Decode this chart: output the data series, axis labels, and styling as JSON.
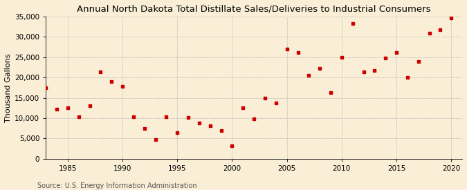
{
  "title": "Annual North Dakota Total Distillate Sales/Deliveries to Industrial Consumers",
  "ylabel": "Thousand Gallons",
  "source": "Source: U.S. Energy Information Administration",
  "background_color": "#faefd6",
  "marker_color": "#cc0000",
  "years": [
    1983,
    1984,
    1985,
    1986,
    1987,
    1988,
    1989,
    1990,
    1991,
    1992,
    1993,
    1994,
    1995,
    1996,
    1997,
    1998,
    1999,
    2000,
    2001,
    2002,
    2003,
    2004,
    2005,
    2006,
    2007,
    2008,
    2009,
    2010,
    2011,
    2012,
    2013,
    2014,
    2015,
    2016,
    2017,
    2018,
    2019,
    2020
  ],
  "values": [
    17500,
    12200,
    12500,
    10400,
    13000,
    21300,
    19000,
    17800,
    10400,
    7500,
    4800,
    10300,
    6500,
    10100,
    8800,
    8200,
    7000,
    3200,
    12500,
    9900,
    15000,
    13700,
    27000,
    26200,
    20600,
    22300,
    16200,
    25000,
    33200,
    21400,
    21800,
    24800,
    26100,
    20000,
    23900,
    30900,
    31800,
    34700
  ],
  "ylim": [
    0,
    35000
  ],
  "yticks": [
    0,
    5000,
    10000,
    15000,
    20000,
    25000,
    30000,
    35000
  ],
  "xticks": [
    1985,
    1990,
    1995,
    2000,
    2005,
    2010,
    2015,
    2020
  ],
  "xlim": [
    1983,
    2021
  ],
  "title_fontsize": 9.5,
  "label_fontsize": 8,
  "tick_fontsize": 7.5,
  "source_fontsize": 7
}
